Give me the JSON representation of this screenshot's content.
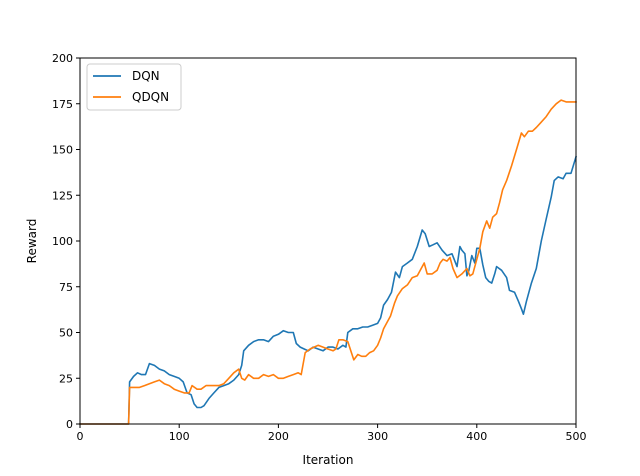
{
  "chart_data": {
    "type": "line",
    "title": "",
    "xlabel": "Iteration",
    "ylabel": "Reward",
    "xlim": [
      0,
      500
    ],
    "ylim": [
      0,
      200
    ],
    "xticks": [
      0,
      100,
      200,
      300,
      400,
      500
    ],
    "yticks": [
      0,
      25,
      50,
      75,
      100,
      125,
      150,
      175,
      200
    ],
    "grid": false,
    "legend": {
      "placement": "top-left",
      "entries": [
        "DQN",
        "QDQN"
      ]
    },
    "series": [
      {
        "name": "DQN",
        "color": "#1f77b4",
        "points": [
          [
            0,
            0
          ],
          [
            49,
            0
          ],
          [
            50,
            23
          ],
          [
            54,
            26
          ],
          [
            58,
            28
          ],
          [
            62,
            27
          ],
          [
            66,
            27
          ],
          [
            70,
            33
          ],
          [
            75,
            32
          ],
          [
            80,
            30
          ],
          [
            85,
            29
          ],
          [
            90,
            27
          ],
          [
            95,
            26
          ],
          [
            100,
            25
          ],
          [
            104,
            23
          ],
          [
            108,
            17
          ],
          [
            112,
            16
          ],
          [
            115,
            11
          ],
          [
            118,
            9
          ],
          [
            122,
            9
          ],
          [
            125,
            10
          ],
          [
            130,
            14
          ],
          [
            135,
            17
          ],
          [
            140,
            20
          ],
          [
            145,
            21
          ],
          [
            150,
            22
          ],
          [
            155,
            24
          ],
          [
            160,
            27
          ],
          [
            163,
            32
          ],
          [
            165,
            40
          ],
          [
            170,
            43
          ],
          [
            175,
            45
          ],
          [
            180,
            46
          ],
          [
            185,
            46
          ],
          [
            190,
            45
          ],
          [
            195,
            48
          ],
          [
            200,
            49
          ],
          [
            205,
            51
          ],
          [
            210,
            50
          ],
          [
            215,
            50
          ],
          [
            218,
            44
          ],
          [
            222,
            42
          ],
          [
            226,
            41
          ],
          [
            230,
            40
          ],
          [
            235,
            42
          ],
          [
            240,
            41
          ],
          [
            245,
            40
          ],
          [
            250,
            42
          ],
          [
            255,
            42
          ],
          [
            260,
            41
          ],
          [
            265,
            43
          ],
          [
            268,
            42
          ],
          [
            270,
            50
          ],
          [
            275,
            52
          ],
          [
            280,
            52
          ],
          [
            285,
            53
          ],
          [
            290,
            53
          ],
          [
            295,
            54
          ],
          [
            300,
            55
          ],
          [
            303,
            58
          ],
          [
            306,
            65
          ],
          [
            310,
            68
          ],
          [
            314,
            72
          ],
          [
            318,
            83
          ],
          [
            322,
            80
          ],
          [
            325,
            86
          ],
          [
            330,
            88
          ],
          [
            335,
            90
          ],
          [
            340,
            97
          ],
          [
            345,
            106
          ],
          [
            348,
            104
          ],
          [
            352,
            97
          ],
          [
            356,
            98
          ],
          [
            360,
            99
          ],
          [
            365,
            95
          ],
          [
            370,
            92
          ],
          [
            375,
            93
          ],
          [
            380,
            86
          ],
          [
            383,
            97
          ],
          [
            385,
            95
          ],
          [
            388,
            93
          ],
          [
            390,
            81
          ],
          [
            392,
            84
          ],
          [
            395,
            92
          ],
          [
            398,
            88
          ],
          [
            400,
            96
          ],
          [
            403,
            96
          ],
          [
            406,
            87
          ],
          [
            409,
            80
          ],
          [
            412,
            78
          ],
          [
            415,
            77
          ],
          [
            418,
            82
          ],
          [
            420,
            86
          ],
          [
            425,
            84
          ],
          [
            430,
            80
          ],
          [
            433,
            73
          ],
          [
            438,
            72
          ],
          [
            442,
            67
          ],
          [
            445,
            63
          ],
          [
            447,
            60
          ],
          [
            450,
            67
          ],
          [
            455,
            77
          ],
          [
            460,
            85
          ],
          [
            465,
            100
          ],
          [
            470,
            112
          ],
          [
            475,
            124
          ],
          [
            478,
            133
          ],
          [
            482,
            135
          ],
          [
            487,
            134
          ],
          [
            490,
            137
          ],
          [
            495,
            137
          ],
          [
            500,
            146
          ]
        ]
      },
      {
        "name": "QDQN",
        "color": "#ff7f0e",
        "points": [
          [
            0,
            0
          ],
          [
            49,
            0
          ],
          [
            50,
            20
          ],
          [
            55,
            20
          ],
          [
            60,
            20
          ],
          [
            65,
            21
          ],
          [
            70,
            22
          ],
          [
            75,
            23
          ],
          [
            80,
            24
          ],
          [
            85,
            22
          ],
          [
            90,
            21
          ],
          [
            95,
            19
          ],
          [
            100,
            18
          ],
          [
            105,
            17
          ],
          [
            110,
            17
          ],
          [
            113,
            21
          ],
          [
            118,
            19
          ],
          [
            122,
            19
          ],
          [
            127,
            21
          ],
          [
            132,
            21
          ],
          [
            137,
            21
          ],
          [
            140,
            21
          ],
          [
            145,
            22
          ],
          [
            150,
            25
          ],
          [
            155,
            28
          ],
          [
            160,
            30
          ],
          [
            163,
            25
          ],
          [
            166,
            24
          ],
          [
            170,
            27
          ],
          [
            175,
            25
          ],
          [
            180,
            25
          ],
          [
            185,
            27
          ],
          [
            190,
            26
          ],
          [
            195,
            27
          ],
          [
            200,
            25
          ],
          [
            205,
            25
          ],
          [
            210,
            26
          ],
          [
            215,
            27
          ],
          [
            220,
            28
          ],
          [
            223,
            27
          ],
          [
            225,
            33
          ],
          [
            227,
            39
          ],
          [
            232,
            41
          ],
          [
            236,
            42
          ],
          [
            240,
            43
          ],
          [
            245,
            42
          ],
          [
            250,
            41
          ],
          [
            255,
            40
          ],
          [
            258,
            41
          ],
          [
            261,
            46
          ],
          [
            265,
            46
          ],
          [
            270,
            45
          ],
          [
            273,
            40
          ],
          [
            276,
            35
          ],
          [
            280,
            38
          ],
          [
            284,
            37
          ],
          [
            288,
            37
          ],
          [
            292,
            39
          ],
          [
            296,
            40
          ],
          [
            300,
            43
          ],
          [
            303,
            47
          ],
          [
            306,
            52
          ],
          [
            309,
            55
          ],
          [
            313,
            59
          ],
          [
            317,
            66
          ],
          [
            320,
            70
          ],
          [
            325,
            74
          ],
          [
            330,
            76
          ],
          [
            335,
            80
          ],
          [
            340,
            81
          ],
          [
            344,
            85
          ],
          [
            347,
            88
          ],
          [
            350,
            82
          ],
          [
            355,
            82
          ],
          [
            360,
            84
          ],
          [
            363,
            88
          ],
          [
            366,
            90
          ],
          [
            370,
            89
          ],
          [
            373,
            91
          ],
          [
            376,
            85
          ],
          [
            380,
            80
          ],
          [
            385,
            82
          ],
          [
            390,
            85
          ],
          [
            393,
            81
          ],
          [
            396,
            82
          ],
          [
            400,
            90
          ],
          [
            403,
            96
          ],
          [
            406,
            105
          ],
          [
            410,
            111
          ],
          [
            413,
            107
          ],
          [
            416,
            113
          ],
          [
            420,
            115
          ],
          [
            423,
            121
          ],
          [
            426,
            128
          ],
          [
            430,
            133
          ],
          [
            435,
            141
          ],
          [
            440,
            150
          ],
          [
            445,
            159
          ],
          [
            448,
            157
          ],
          [
            452,
            160
          ],
          [
            456,
            160
          ],
          [
            460,
            162
          ],
          [
            465,
            165
          ],
          [
            470,
            168
          ],
          [
            475,
            172
          ],
          [
            480,
            175
          ],
          [
            485,
            177
          ],
          [
            490,
            176
          ],
          [
            495,
            176
          ],
          [
            500,
            176
          ]
        ]
      }
    ]
  }
}
